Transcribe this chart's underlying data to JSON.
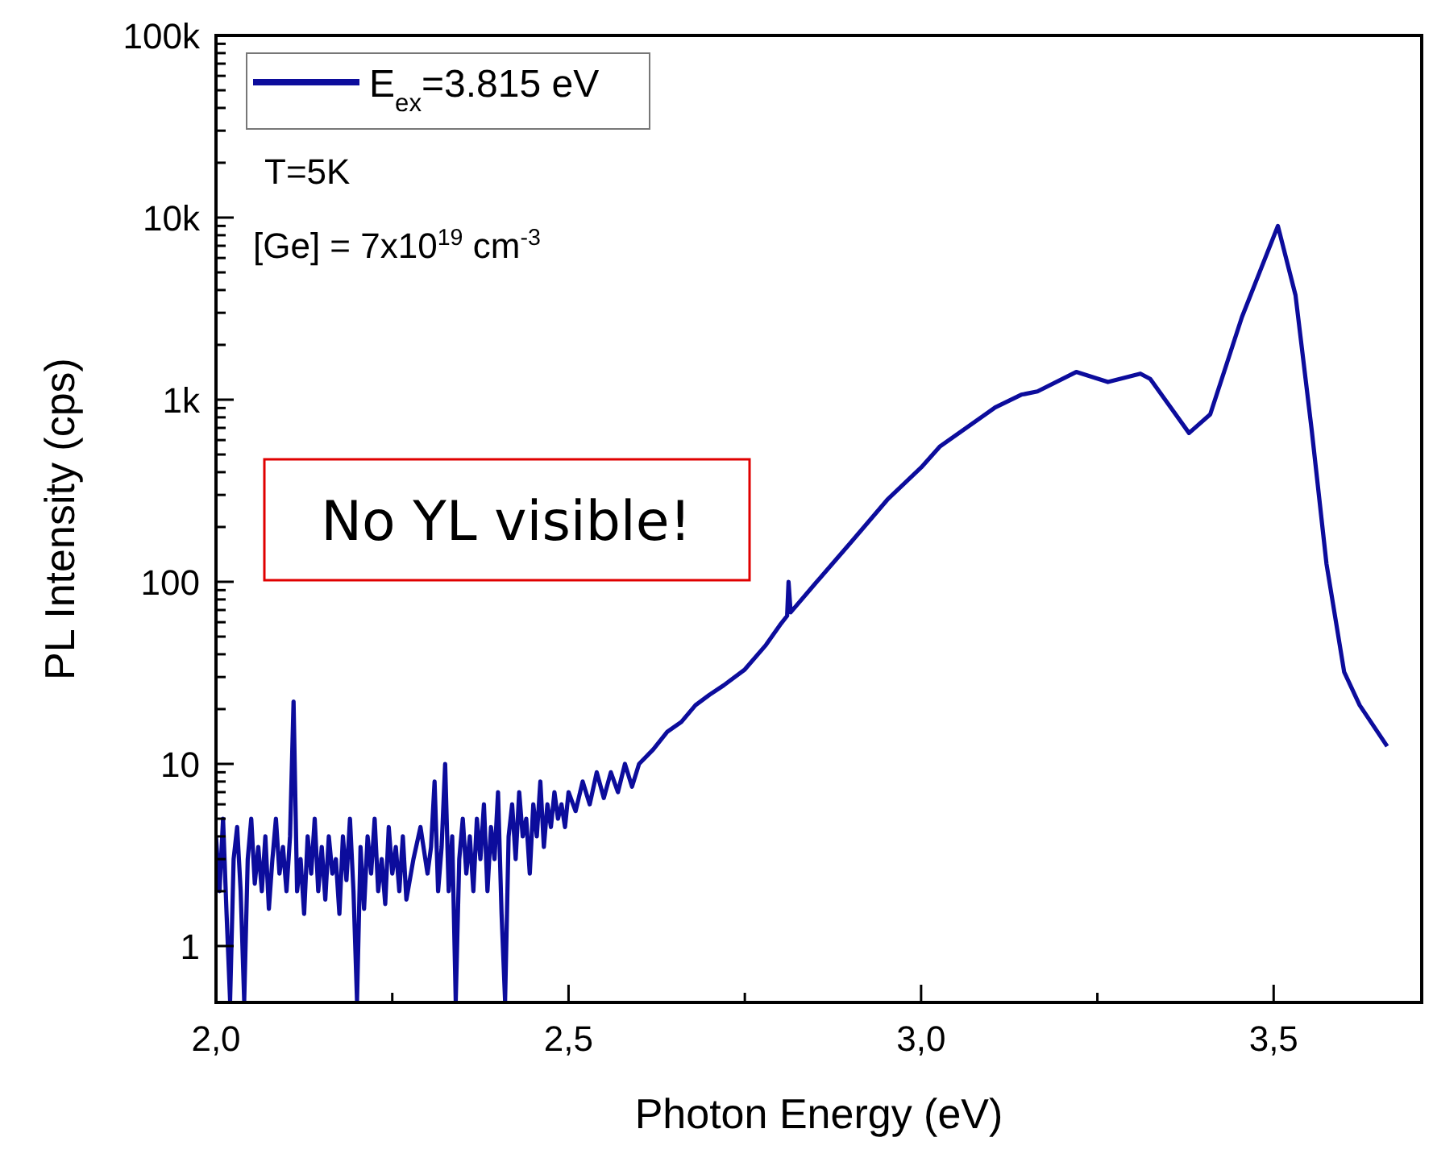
{
  "chart_data": {
    "type": "line",
    "xlabel": "Photon Energy (eV)",
    "ylabel": "PL Intensity (cps)",
    "log": "y",
    "legend": "top left",
    "grid": false,
    "line_style": "solid",
    "xlim": [
      2.0,
      3.71
    ],
    "xticks": [
      {
        "value": 2.0,
        "label": "2,0"
      },
      {
        "value": 2.25,
        "label": null
      },
      {
        "value": 2.5,
        "label": "2,5"
      },
      {
        "value": 2.75,
        "label": null
      },
      {
        "value": 3.0,
        "label": "3,0"
      },
      {
        "value": 3.25,
        "label": null
      },
      {
        "value": 3.5,
        "label": "3,5"
      }
    ],
    "ylim": [
      0.49,
      100000
    ],
    "yticks": [
      {
        "value": 1,
        "label": "1"
      },
      {
        "value": 2,
        "label": null
      },
      {
        "value": 3,
        "label": null
      },
      {
        "value": 4,
        "label": null
      },
      {
        "value": 5,
        "label": null
      },
      {
        "value": 6,
        "label": null
      },
      {
        "value": 7,
        "label": null
      },
      {
        "value": 8,
        "label": null
      },
      {
        "value": 9,
        "label": null
      },
      {
        "value": 10,
        "label": "10"
      },
      {
        "value": 20,
        "label": null
      },
      {
        "value": 30,
        "label": null
      },
      {
        "value": 40,
        "label": null
      },
      {
        "value": 50,
        "label": null
      },
      {
        "value": 60,
        "label": null
      },
      {
        "value": 70,
        "label": null
      },
      {
        "value": 80,
        "label": null
      },
      {
        "value": 90,
        "label": null
      },
      {
        "value": 100,
        "label": "100"
      },
      {
        "value": 200,
        "label": null
      },
      {
        "value": 300,
        "label": null
      },
      {
        "value": 400,
        "label": null
      },
      {
        "value": 500,
        "label": null
      },
      {
        "value": 600,
        "label": null
      },
      {
        "value": 700,
        "label": null
      },
      {
        "value": 800,
        "label": null
      },
      {
        "value": 900,
        "label": null
      },
      {
        "value": 1000,
        "label": "1k"
      },
      {
        "value": 2000,
        "label": null
      },
      {
        "value": 3000,
        "label": null
      },
      {
        "value": 4000,
        "label": null
      },
      {
        "value": 5000,
        "label": null
      },
      {
        "value": 6000,
        "label": null
      },
      {
        "value": 7000,
        "label": null
      },
      {
        "value": 8000,
        "label": null
      },
      {
        "value": 9000,
        "label": null
      },
      {
        "value": 10000,
        "label": "10k"
      },
      {
        "value": 20000,
        "label": null
      },
      {
        "value": 30000,
        "label": null
      },
      {
        "value": 40000,
        "label": null
      },
      {
        "value": 50000,
        "label": null
      },
      {
        "value": 60000,
        "label": null
      },
      {
        "value": 70000,
        "label": null
      },
      {
        "value": 80000,
        "label": null
      },
      {
        "value": 90000,
        "label": null
      },
      {
        "value": 100000,
        "label": "100k"
      }
    ],
    "annotations": [
      "T=5K",
      "[Ge] = 7x10$^{19}$ cm$^{-3}$",
      "No YL visible!"
    ],
    "series": [
      {
        "name": "E$_{ex}$=3.815 eV",
        "color": "#0c0c9c",
        "x": [
          2.0,
          2.005,
          2.01,
          2.015,
          2.02,
          2.025,
          2.03,
          2.035,
          2.04,
          2.045,
          2.05,
          2.055,
          2.06,
          2.065,
          2.07,
          2.075,
          2.08,
          2.085,
          2.09,
          2.095,
          2.1,
          2.105,
          2.11,
          2.115,
          2.12,
          2.125,
          2.13,
          2.135,
          2.14,
          2.145,
          2.15,
          2.155,
          2.16,
          2.165,
          2.17,
          2.175,
          2.18,
          2.185,
          2.19,
          2.195,
          2.2,
          2.205,
          2.21,
          2.215,
          2.22,
          2.225,
          2.23,
          2.235,
          2.24,
          2.245,
          2.25,
          2.255,
          2.26,
          2.265,
          2.27,
          2.28,
          2.29,
          2.3,
          2.305,
          2.31,
          2.315,
          2.32,
          2.325,
          2.33,
          2.335,
          2.34,
          2.345,
          2.35,
          2.355,
          2.36,
          2.365,
          2.37,
          2.375,
          2.38,
          2.385,
          2.39,
          2.395,
          2.4,
          2.405,
          2.41,
          2.415,
          2.42,
          2.425,
          2.43,
          2.435,
          2.44,
          2.445,
          2.45,
          2.455,
          2.46,
          2.465,
          2.47,
          2.475,
          2.48,
          2.485,
          2.49,
          2.495,
          2.5,
          2.51,
          2.52,
          2.53,
          2.54,
          2.55,
          2.56,
          2.57,
          2.58,
          2.59,
          2.6,
          2.62,
          2.64,
          2.66,
          2.68,
          2.7,
          2.72,
          2.75,
          2.78,
          2.8,
          2.81,
          2.812,
          2.815,
          2.85,
          2.9,
          2.952,
          3.0,
          3.027,
          3.105,
          3.142,
          3.165,
          3.22,
          3.265,
          3.311,
          3.325,
          3.38,
          3.41,
          3.455,
          3.506,
          3.531,
          3.554,
          3.575,
          3.6,
          3.622,
          3.661
        ],
        "values": [
          4,
          2,
          5,
          1.5,
          0.5,
          3,
          4.5,
          2,
          0.5,
          3,
          5,
          2.2,
          3.5,
          2,
          4,
          1.6,
          3,
          5,
          2.5,
          3.5,
          2,
          4,
          22,
          2,
          3,
          1.5,
          4,
          2.5,
          5,
          2,
          3.5,
          1.8,
          4,
          2.5,
          3,
          1.5,
          4,
          2.3,
          5,
          2,
          0.5,
          3.5,
          1.6,
          4,
          2.5,
          5,
          2,
          3,
          1.7,
          4.5,
          2.5,
          3.5,
          2,
          4,
          1.8,
          3,
          4.5,
          2.5,
          3.5,
          8,
          2,
          3.5,
          10,
          2,
          4,
          0.5,
          3,
          5,
          2.5,
          4,
          2,
          5,
          3,
          6,
          2,
          4.5,
          3,
          7,
          1.5,
          0.5,
          4,
          6,
          3,
          7,
          4,
          5,
          2.5,
          6,
          4,
          8,
          3.5,
          6,
          4.5,
          7,
          5,
          6,
          4.5,
          7,
          5.5,
          8,
          6,
          9,
          6.5,
          9,
          7,
          10,
          7.5,
          10,
          12,
          15,
          17,
          21,
          24,
          27,
          33,
          45,
          58,
          65,
          100,
          68,
          98,
          164,
          282,
          424,
          555,
          906,
          1065,
          1110,
          1420,
          1250,
          1390,
          1300,
          656,
          830,
          2840,
          9000,
          3750,
          680,
          125,
          32,
          21,
          12.5
        ]
      }
    ]
  }
}
